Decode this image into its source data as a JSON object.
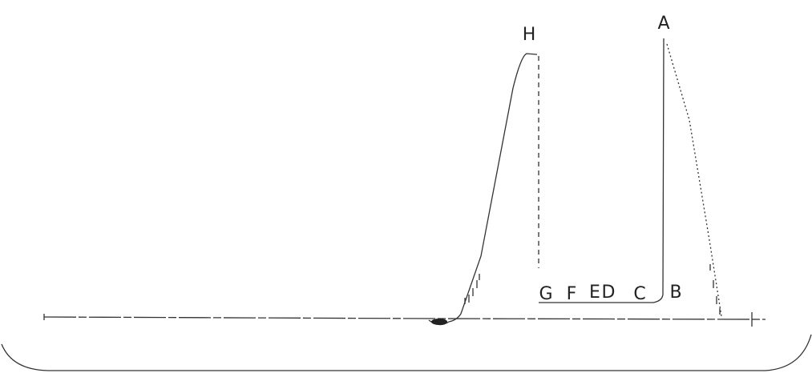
{
  "labels": [
    "H",
    "A",
    "G",
    "F",
    "E",
    "D",
    "C",
    "B"
  ]
}
